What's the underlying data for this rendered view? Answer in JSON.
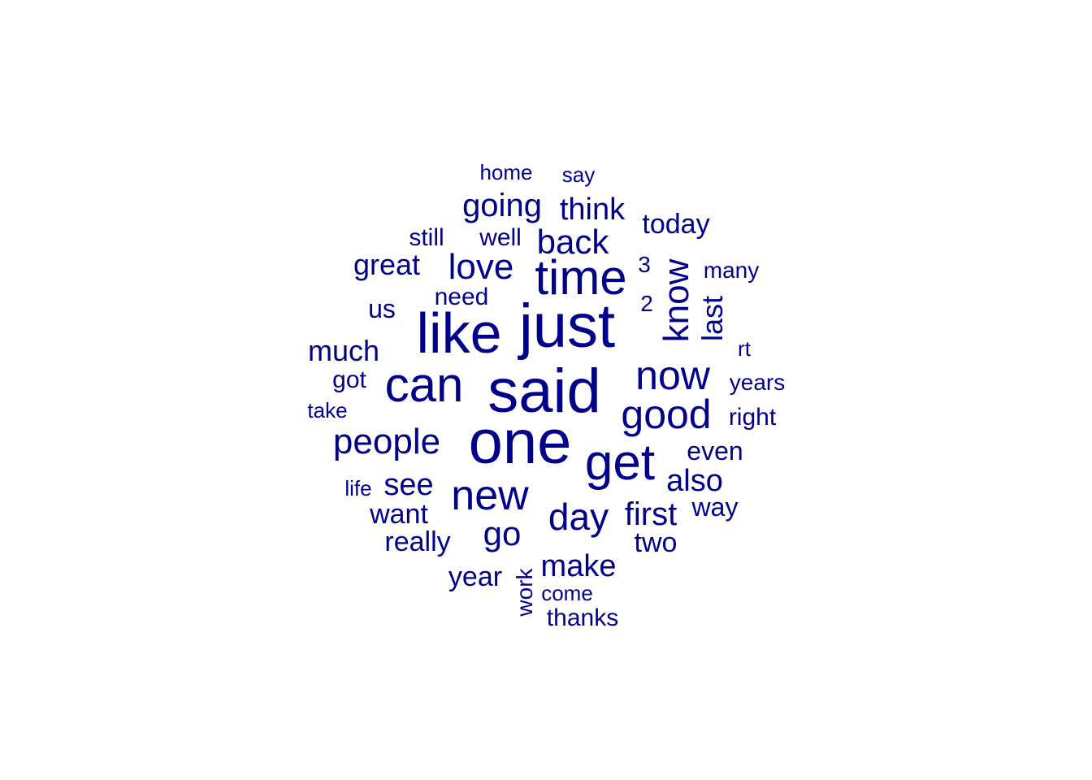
{
  "color": "#00008b",
  "words": [
    {
      "text": "one",
      "weight": 10
    },
    {
      "text": "said",
      "weight": 10
    },
    {
      "text": "just",
      "weight": 10
    },
    {
      "text": "like",
      "weight": 9
    },
    {
      "text": "get",
      "weight": 8
    },
    {
      "text": "can",
      "weight": 8
    },
    {
      "text": "time",
      "weight": 8
    },
    {
      "text": "new",
      "weight": 7
    },
    {
      "text": "now",
      "weight": 7
    },
    {
      "text": "good",
      "weight": 7
    },
    {
      "text": "know",
      "weight": 6
    },
    {
      "text": "day",
      "weight": 6
    },
    {
      "text": "people",
      "weight": 6
    },
    {
      "text": "love",
      "weight": 5
    },
    {
      "text": "back",
      "weight": 5
    },
    {
      "text": "go",
      "weight": 5
    },
    {
      "text": "first",
      "weight": 5
    },
    {
      "text": "going",
      "weight": 5
    },
    {
      "text": "make",
      "weight": 5
    },
    {
      "text": "see",
      "weight": 5
    },
    {
      "text": "also",
      "weight": 5
    },
    {
      "text": "think",
      "weight": 5
    },
    {
      "text": "great",
      "weight": 4
    },
    {
      "text": "much",
      "weight": 4
    },
    {
      "text": "last",
      "weight": 4
    },
    {
      "text": "really",
      "weight": 4
    },
    {
      "text": "today",
      "weight": 4
    },
    {
      "text": "want",
      "weight": 4
    },
    {
      "text": "two",
      "weight": 4
    },
    {
      "text": "year",
      "weight": 4
    },
    {
      "text": "even",
      "weight": 4
    },
    {
      "text": "way",
      "weight": 4
    },
    {
      "text": "right",
      "weight": 3
    },
    {
      "text": "us",
      "weight": 3
    },
    {
      "text": "well",
      "weight": 3
    },
    {
      "text": "still",
      "weight": 3
    },
    {
      "text": "need",
      "weight": 3
    },
    {
      "text": "got",
      "weight": 3
    },
    {
      "text": "years",
      "weight": 3
    },
    {
      "text": "thanks",
      "weight": 3
    },
    {
      "text": "many",
      "weight": 3
    },
    {
      "text": "work",
      "weight": 3
    },
    {
      "text": "3",
      "weight": 3
    },
    {
      "text": "2",
      "weight": 3
    },
    {
      "text": "rt",
      "weight": 2
    },
    {
      "text": "home",
      "weight": 2
    },
    {
      "text": "say",
      "weight": 2
    },
    {
      "text": "take",
      "weight": 2
    },
    {
      "text": "life",
      "weight": 2
    },
    {
      "text": "come",
      "weight": 2
    }
  ]
}
